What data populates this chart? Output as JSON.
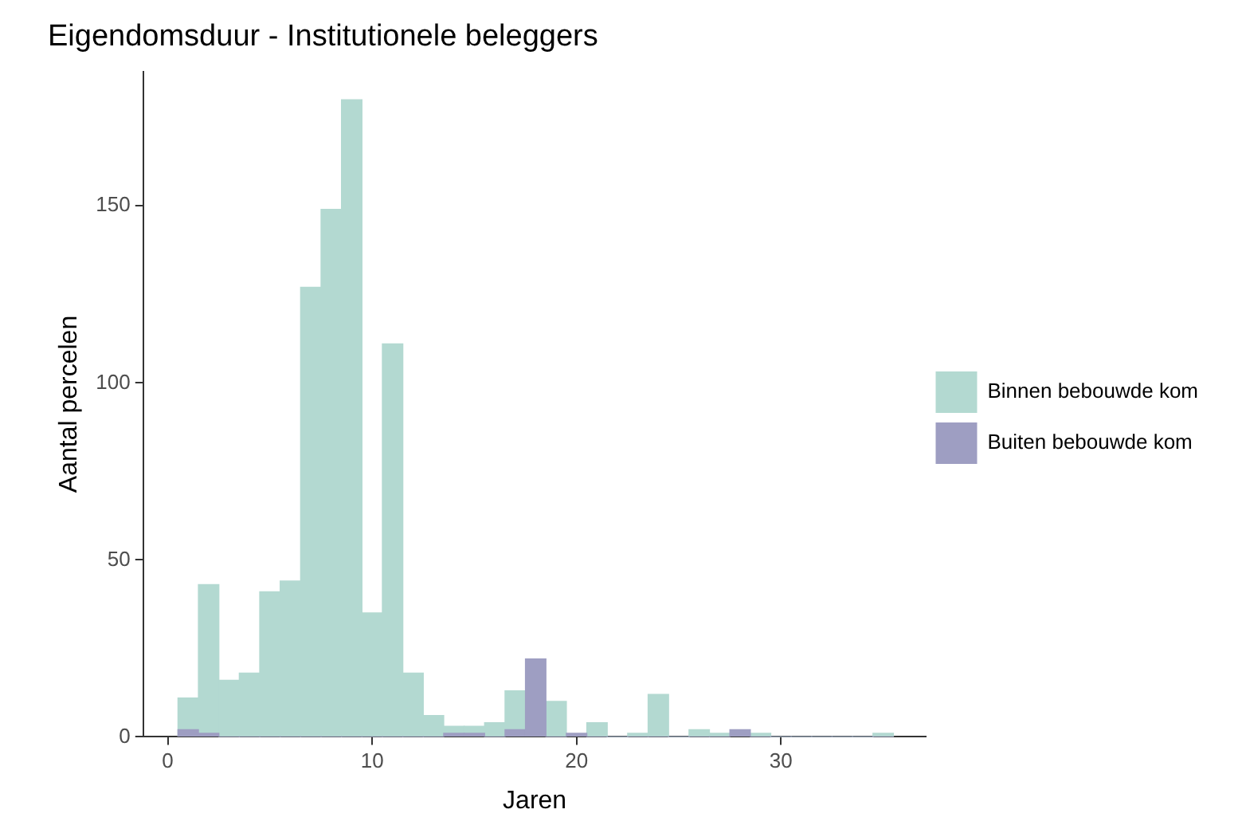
{
  "chart_data": {
    "type": "histogram",
    "title": "Eigendomsduur - Institutionele beleggers",
    "xlabel": "Jaren",
    "ylabel": "Aantal percelen",
    "bins": [
      0.5,
      1.5,
      2.5,
      3.5,
      4.5,
      5.5,
      6.5,
      7.5,
      8.5,
      9.5,
      10.5,
      11.5,
      12.5,
      13.5,
      14.5,
      15.5,
      16.5,
      17.5,
      18.5,
      19.5,
      20.5,
      21.5,
      22.5,
      23.5,
      24.5,
      25.5,
      26.5,
      27.5,
      28.5,
      29.5,
      30.5,
      31.5,
      32.5,
      33.5,
      34.5,
      35.5
    ],
    "series": [
      {
        "name": "Binnen bebouwde kom",
        "color": "#b3d9d1",
        "values": [
          11,
          43,
          16,
          18,
          41,
          44,
          127,
          149,
          180,
          35,
          111,
          18,
          6,
          3,
          3,
          4,
          13,
          null,
          10,
          null,
          4,
          0,
          1,
          12,
          0,
          2,
          1,
          null,
          1,
          0,
          0,
          0,
          0,
          0,
          1
        ]
      },
      {
        "name": "Buiten bebouwde kom",
        "color": "#9e9ec2",
        "values": [
          2,
          1,
          0,
          0,
          0,
          0,
          0,
          0,
          0,
          0,
          0,
          0,
          0,
          1,
          1,
          0,
          2,
          22,
          0,
          1,
          0,
          0,
          0,
          0,
          0,
          0,
          0,
          2,
          0,
          0,
          0,
          0,
          0,
          0,
          0
        ]
      }
    ],
    "xlim": [
      -1.2,
      37.1
    ],
    "xticks": [
      0,
      10,
      20,
      30
    ],
    "ylim": [
      0,
      188
    ],
    "yticks": [
      0,
      50,
      100,
      150
    ],
    "grid": false,
    "legend": "right"
  }
}
